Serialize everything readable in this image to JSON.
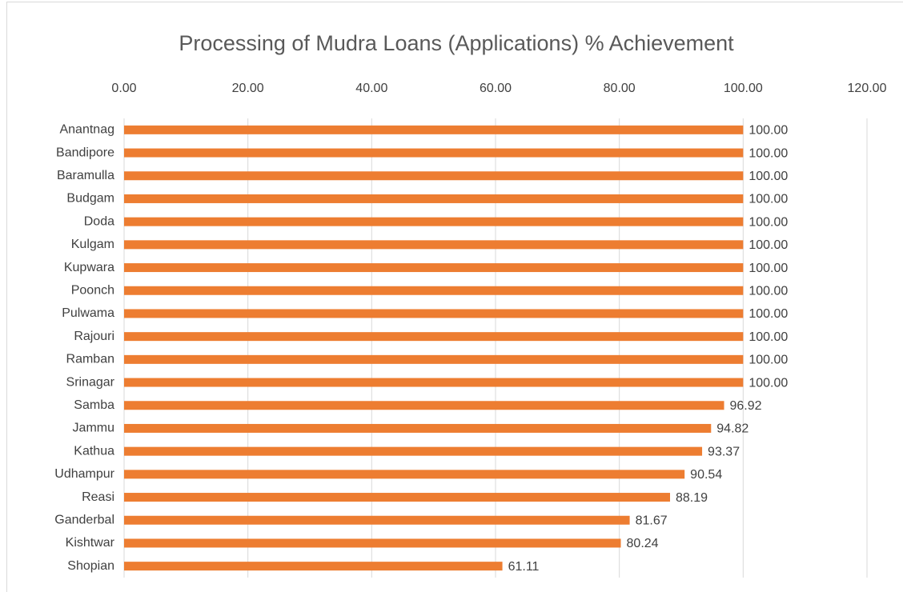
{
  "chart_data": {
    "type": "bar",
    "orientation": "horizontal",
    "title": "Processing of Mudra Loans (Applications)  % Achievement",
    "categories": [
      "Anantnag",
      "Bandipore",
      "Baramulla",
      "Budgam",
      "Doda",
      "Kulgam",
      "Kupwara",
      "Poonch",
      "Pulwama",
      "Rajouri",
      "Ramban",
      "Srinagar",
      "Samba",
      "Jammu",
      "Kathua",
      "Udhampur",
      "Reasi",
      "Ganderbal",
      "Kishtwar",
      "Shopian"
    ],
    "values": [
      100,
      100,
      100,
      100,
      100,
      100,
      100,
      100,
      100,
      100,
      100,
      100,
      96.92,
      94.82,
      93.37,
      90.54,
      88.19,
      81.67,
      80.24,
      61.11
    ],
    "value_labels": [
      "100.00",
      "100.00",
      "100.00",
      "100.00",
      "100.00",
      "100.00",
      "100.00",
      "100.00",
      "100.00",
      "100.00",
      "100.00",
      "100.00",
      "96.92",
      "94.82",
      "93.37",
      "90.54",
      "88.19",
      "81.67",
      "80.24",
      "61.11"
    ],
    "color": "#ed7d31",
    "xlim": [
      0,
      120
    ],
    "xticks": [
      {
        "value": 0,
        "label": "0.00"
      },
      {
        "value": 20,
        "label": "20.00"
      },
      {
        "value": 40,
        "label": "40.00"
      },
      {
        "value": 60,
        "label": "60.00"
      },
      {
        "value": 80,
        "label": "80.00"
      },
      {
        "value": 100,
        "label": "100.00"
      },
      {
        "value": 120,
        "label": "120.00"
      }
    ],
    "grid": true
  }
}
